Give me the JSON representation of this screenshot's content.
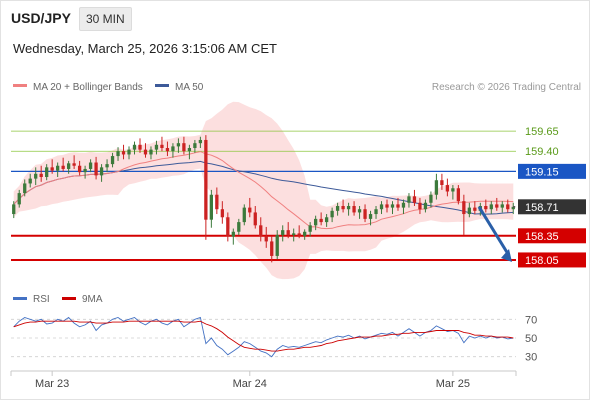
{
  "header": {
    "symbol": "USD/JPY",
    "timeframe": "30 MIN",
    "datetime": "Wednesday, March 25, 2026 3:15:06 AM CET"
  },
  "credit": "Research © 2026 Trading Central",
  "colors": {
    "bull": "#3c7a3c",
    "bear": "#cc2222",
    "ma20": "#f08080",
    "bands_fill": "#fcd9d9",
    "ma50": "#3d5a99",
    "resistance_green": "#8cc63f",
    "pivot_blue": "#1a56c4",
    "support_red": "#d40000",
    "current_badge": "#333333",
    "rsi": "#4472c4",
    "rsi_ma": "#cc0000",
    "arrow": "#2a5fa8"
  },
  "chart_data": [
    {
      "type": "line",
      "panel": "price",
      "legend": [
        "MA 20 + Bollinger Bands",
        "MA 50"
      ],
      "x_ticks": [
        "Mar 23",
        "Mar 24",
        "Mar 25"
      ],
      "y_range": [
        157.95,
        159.85
      ],
      "levels": [
        {
          "value": 159.65,
          "label": "159.65",
          "kind": "resistance-green"
        },
        {
          "value": 159.4,
          "label": "159.40",
          "kind": "resistance-green"
        },
        {
          "value": 159.15,
          "label": "159.15",
          "kind": "pivot-blue"
        },
        {
          "value": 158.35,
          "label": "158.35",
          "kind": "support-red"
        },
        {
          "value": 158.05,
          "label": "158.05",
          "kind": "support-red"
        }
      ],
      "current_price": {
        "value": 158.71,
        "label": "158.71"
      },
      "forecast_arrow": {
        "from": 158.71,
        "to": 158.05
      },
      "candles": [
        [
          158.62,
          158.78,
          158.57,
          158.74
        ],
        [
          158.74,
          158.92,
          158.7,
          158.88
        ],
        [
          158.88,
          159.05,
          158.84,
          159.0
        ],
        [
          159.0,
          159.12,
          158.95,
          159.06
        ],
        [
          159.06,
          159.2,
          158.98,
          159.12
        ],
        [
          159.12,
          159.22,
          159.02,
          159.08
        ],
        [
          159.08,
          159.24,
          159.04,
          159.2
        ],
        [
          159.2,
          159.3,
          159.12,
          159.16
        ],
        [
          159.16,
          159.26,
          159.08,
          159.22
        ],
        [
          159.22,
          159.32,
          159.15,
          159.18
        ],
        [
          159.18,
          159.28,
          159.12,
          159.25
        ],
        [
          159.25,
          159.35,
          159.18,
          159.22
        ],
        [
          159.22,
          159.28,
          159.1,
          159.14
        ],
        [
          159.14,
          159.22,
          159.06,
          159.18
        ],
        [
          159.18,
          159.3,
          159.14,
          159.26
        ],
        [
          159.26,
          159.33,
          159.05,
          159.1
        ],
        [
          159.1,
          159.24,
          159.02,
          159.2
        ],
        [
          159.2,
          159.3,
          159.14,
          159.24
        ],
        [
          159.24,
          159.38,
          159.2,
          159.34
        ],
        [
          159.34,
          159.45,
          159.28,
          159.4
        ],
        [
          159.4,
          159.48,
          159.3,
          159.36
        ],
        [
          159.36,
          159.46,
          159.3,
          159.42
        ],
        [
          159.42,
          159.52,
          159.36,
          159.48
        ],
        [
          159.48,
          159.56,
          159.38,
          159.42
        ],
        [
          159.42,
          159.5,
          159.32,
          159.36
        ],
        [
          159.36,
          159.46,
          159.3,
          159.42
        ],
        [
          159.42,
          159.53,
          159.36,
          159.48
        ],
        [
          159.48,
          159.58,
          159.4,
          159.44
        ],
        [
          159.44,
          159.52,
          159.34,
          159.4
        ],
        [
          159.4,
          159.5,
          159.32,
          159.46
        ],
        [
          159.46,
          159.56,
          159.38,
          159.5
        ],
        [
          159.5,
          159.58,
          159.36,
          159.4
        ],
        [
          159.4,
          159.48,
          159.3,
          159.44
        ],
        [
          159.44,
          159.54,
          159.38,
          159.5
        ],
        [
          159.5,
          159.58,
          159.44,
          159.54
        ],
        [
          159.54,
          159.6,
          158.3,
          158.55
        ],
        [
          158.55,
          158.92,
          158.45,
          158.86
        ],
        [
          158.86,
          158.95,
          158.62,
          158.68
        ],
        [
          158.68,
          158.78,
          158.5,
          158.58
        ],
        [
          158.58,
          158.64,
          158.28,
          158.34
        ],
        [
          158.34,
          158.44,
          158.24,
          158.4
        ],
        [
          158.4,
          158.56,
          158.36,
          158.52
        ],
        [
          158.52,
          158.74,
          158.48,
          158.7
        ],
        [
          158.7,
          158.82,
          158.58,
          158.64
        ],
        [
          158.64,
          158.72,
          158.44,
          158.48
        ],
        [
          158.48,
          158.58,
          158.28,
          158.34
        ],
        [
          158.34,
          158.46,
          158.2,
          158.28
        ],
        [
          158.28,
          158.34,
          158.02,
          158.1
        ],
        [
          158.1,
          158.42,
          158.06,
          158.36
        ],
        [
          158.36,
          158.48,
          158.28,
          158.42
        ],
        [
          158.42,
          158.52,
          158.32,
          158.36
        ],
        [
          158.36,
          158.44,
          158.28,
          158.38
        ],
        [
          158.38,
          158.48,
          158.32,
          158.35
        ],
        [
          158.35,
          158.43,
          158.3,
          158.4
        ],
        [
          158.4,
          158.52,
          158.34,
          158.48
        ],
        [
          158.48,
          158.6,
          158.42,
          158.56
        ],
        [
          158.56,
          158.64,
          158.48,
          158.52
        ],
        [
          158.52,
          158.62,
          158.46,
          158.58
        ],
        [
          158.58,
          158.7,
          158.52,
          158.66
        ],
        [
          158.66,
          158.76,
          158.6,
          158.72
        ],
        [
          158.72,
          158.8,
          158.64,
          158.68
        ],
        [
          158.68,
          158.76,
          158.6,
          158.72
        ],
        [
          158.72,
          158.78,
          158.6,
          158.64
        ],
        [
          158.64,
          158.72,
          158.56,
          158.68
        ],
        [
          158.68,
          158.74,
          158.52,
          158.56
        ],
        [
          158.56,
          158.66,
          158.48,
          158.62
        ],
        [
          158.62,
          158.72,
          158.56,
          158.68
        ],
        [
          158.68,
          158.78,
          158.62,
          158.74
        ],
        [
          158.74,
          158.8,
          158.64,
          158.7
        ],
        [
          158.7,
          158.78,
          158.62,
          158.74
        ],
        [
          158.74,
          158.82,
          158.66,
          158.7
        ],
        [
          158.7,
          158.8,
          158.62,
          158.76
        ],
        [
          158.76,
          158.88,
          158.7,
          158.84
        ],
        [
          158.84,
          158.92,
          158.72,
          158.76
        ],
        [
          158.76,
          158.82,
          158.62,
          158.68
        ],
        [
          158.68,
          158.8,
          158.64,
          158.76
        ],
        [
          158.76,
          158.9,
          158.7,
          158.86
        ],
        [
          158.86,
          159.12,
          158.8,
          159.04
        ],
        [
          159.04,
          159.12,
          158.92,
          158.98
        ],
        [
          158.98,
          159.06,
          158.84,
          158.9
        ],
        [
          158.9,
          158.98,
          158.8,
          158.94
        ],
        [
          158.94,
          158.98,
          158.74,
          158.78
        ],
        [
          158.78,
          158.86,
          158.36,
          158.62
        ],
        [
          158.62,
          158.76,
          158.58,
          158.7
        ],
        [
          158.7,
          158.78,
          158.62,
          158.66
        ],
        [
          158.66,
          158.76,
          158.6,
          158.72
        ],
        [
          158.72,
          158.8,
          158.64,
          158.68
        ],
        [
          158.68,
          158.78,
          158.62,
          158.74
        ],
        [
          158.74,
          158.82,
          158.66,
          158.7
        ],
        [
          158.7,
          158.78,
          158.64,
          158.74
        ],
        [
          158.74,
          158.8,
          158.64,
          158.68
        ],
        [
          158.68,
          158.76,
          158.62,
          158.71
        ]
      ]
    },
    {
      "type": "line",
      "panel": "rsi",
      "legend": [
        "RSI",
        "9MA"
      ],
      "y_ticks": [
        70,
        50,
        30
      ],
      "y_range": [
        20,
        80
      ],
      "series": [
        {
          "name": "RSI",
          "values": [
            62,
            68,
            72,
            70,
            68,
            70,
            65,
            66,
            70,
            68,
            72,
            66,
            62,
            64,
            68,
            58,
            64,
            66,
            70,
            72,
            68,
            70,
            72,
            67,
            64,
            68,
            70,
            66,
            64,
            68,
            70,
            62,
            66,
            70,
            72,
            44,
            50,
            42,
            38,
            32,
            36,
            40,
            46,
            44,
            40,
            36,
            34,
            30,
            38,
            42,
            40,
            41,
            40,
            42,
            44,
            46,
            45,
            48,
            50,
            52,
            51,
            53,
            50,
            52,
            49,
            51,
            53,
            55,
            54,
            56,
            52,
            56,
            60,
            56,
            52,
            56,
            58,
            63,
            60,
            57,
            58,
            55,
            45,
            52,
            50,
            52,
            50,
            52,
            50,
            51,
            49,
            50
          ]
        },
        {
          "name": "9MA",
          "values": [
            62,
            64,
            66,
            67,
            67,
            68,
            68,
            68,
            68,
            68,
            68,
            68,
            67,
            67,
            67,
            66,
            66,
            66,
            67,
            67,
            67,
            68,
            68,
            68,
            68,
            68,
            68,
            68,
            68,
            68,
            68,
            67,
            67,
            67,
            68,
            65,
            63,
            60,
            56,
            51,
            47,
            43,
            40,
            39,
            38,
            38,
            37,
            36,
            36,
            37,
            38,
            38,
            39,
            40,
            40,
            41,
            42,
            44,
            45,
            47,
            48,
            49,
            50,
            51,
            51,
            51,
            52,
            52,
            53,
            54,
            54,
            55,
            55,
            56,
            56,
            56,
            57,
            58,
            58,
            58,
            58,
            58,
            56,
            55,
            53,
            53,
            52,
            52,
            51,
            51,
            51,
            50
          ]
        }
      ]
    }
  ]
}
